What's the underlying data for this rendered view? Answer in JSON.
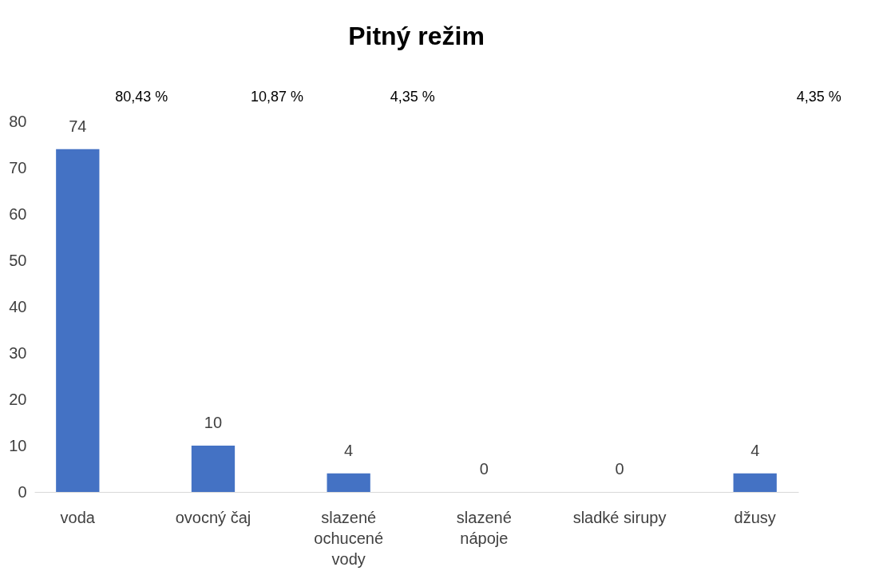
{
  "chart_data": {
    "type": "bar",
    "title": "Pitný režim",
    "categories": [
      "voda",
      "ovocný čaj",
      "slazené ochucené vody",
      "slazené nápoje",
      "sladké sirupy",
      "džusy"
    ],
    "values": [
      74,
      10,
      4,
      0,
      0,
      4
    ],
    "color": "#4472c4",
    "ylim": [
      0,
      80
    ],
    "yticks": [
      0,
      10,
      20,
      30,
      40,
      50,
      60,
      70,
      80
    ],
    "grid": false,
    "data_labels": true,
    "annotations": [
      "80,43 %",
      "10,87 %",
      "4,35 %",
      "4,35 %"
    ]
  }
}
